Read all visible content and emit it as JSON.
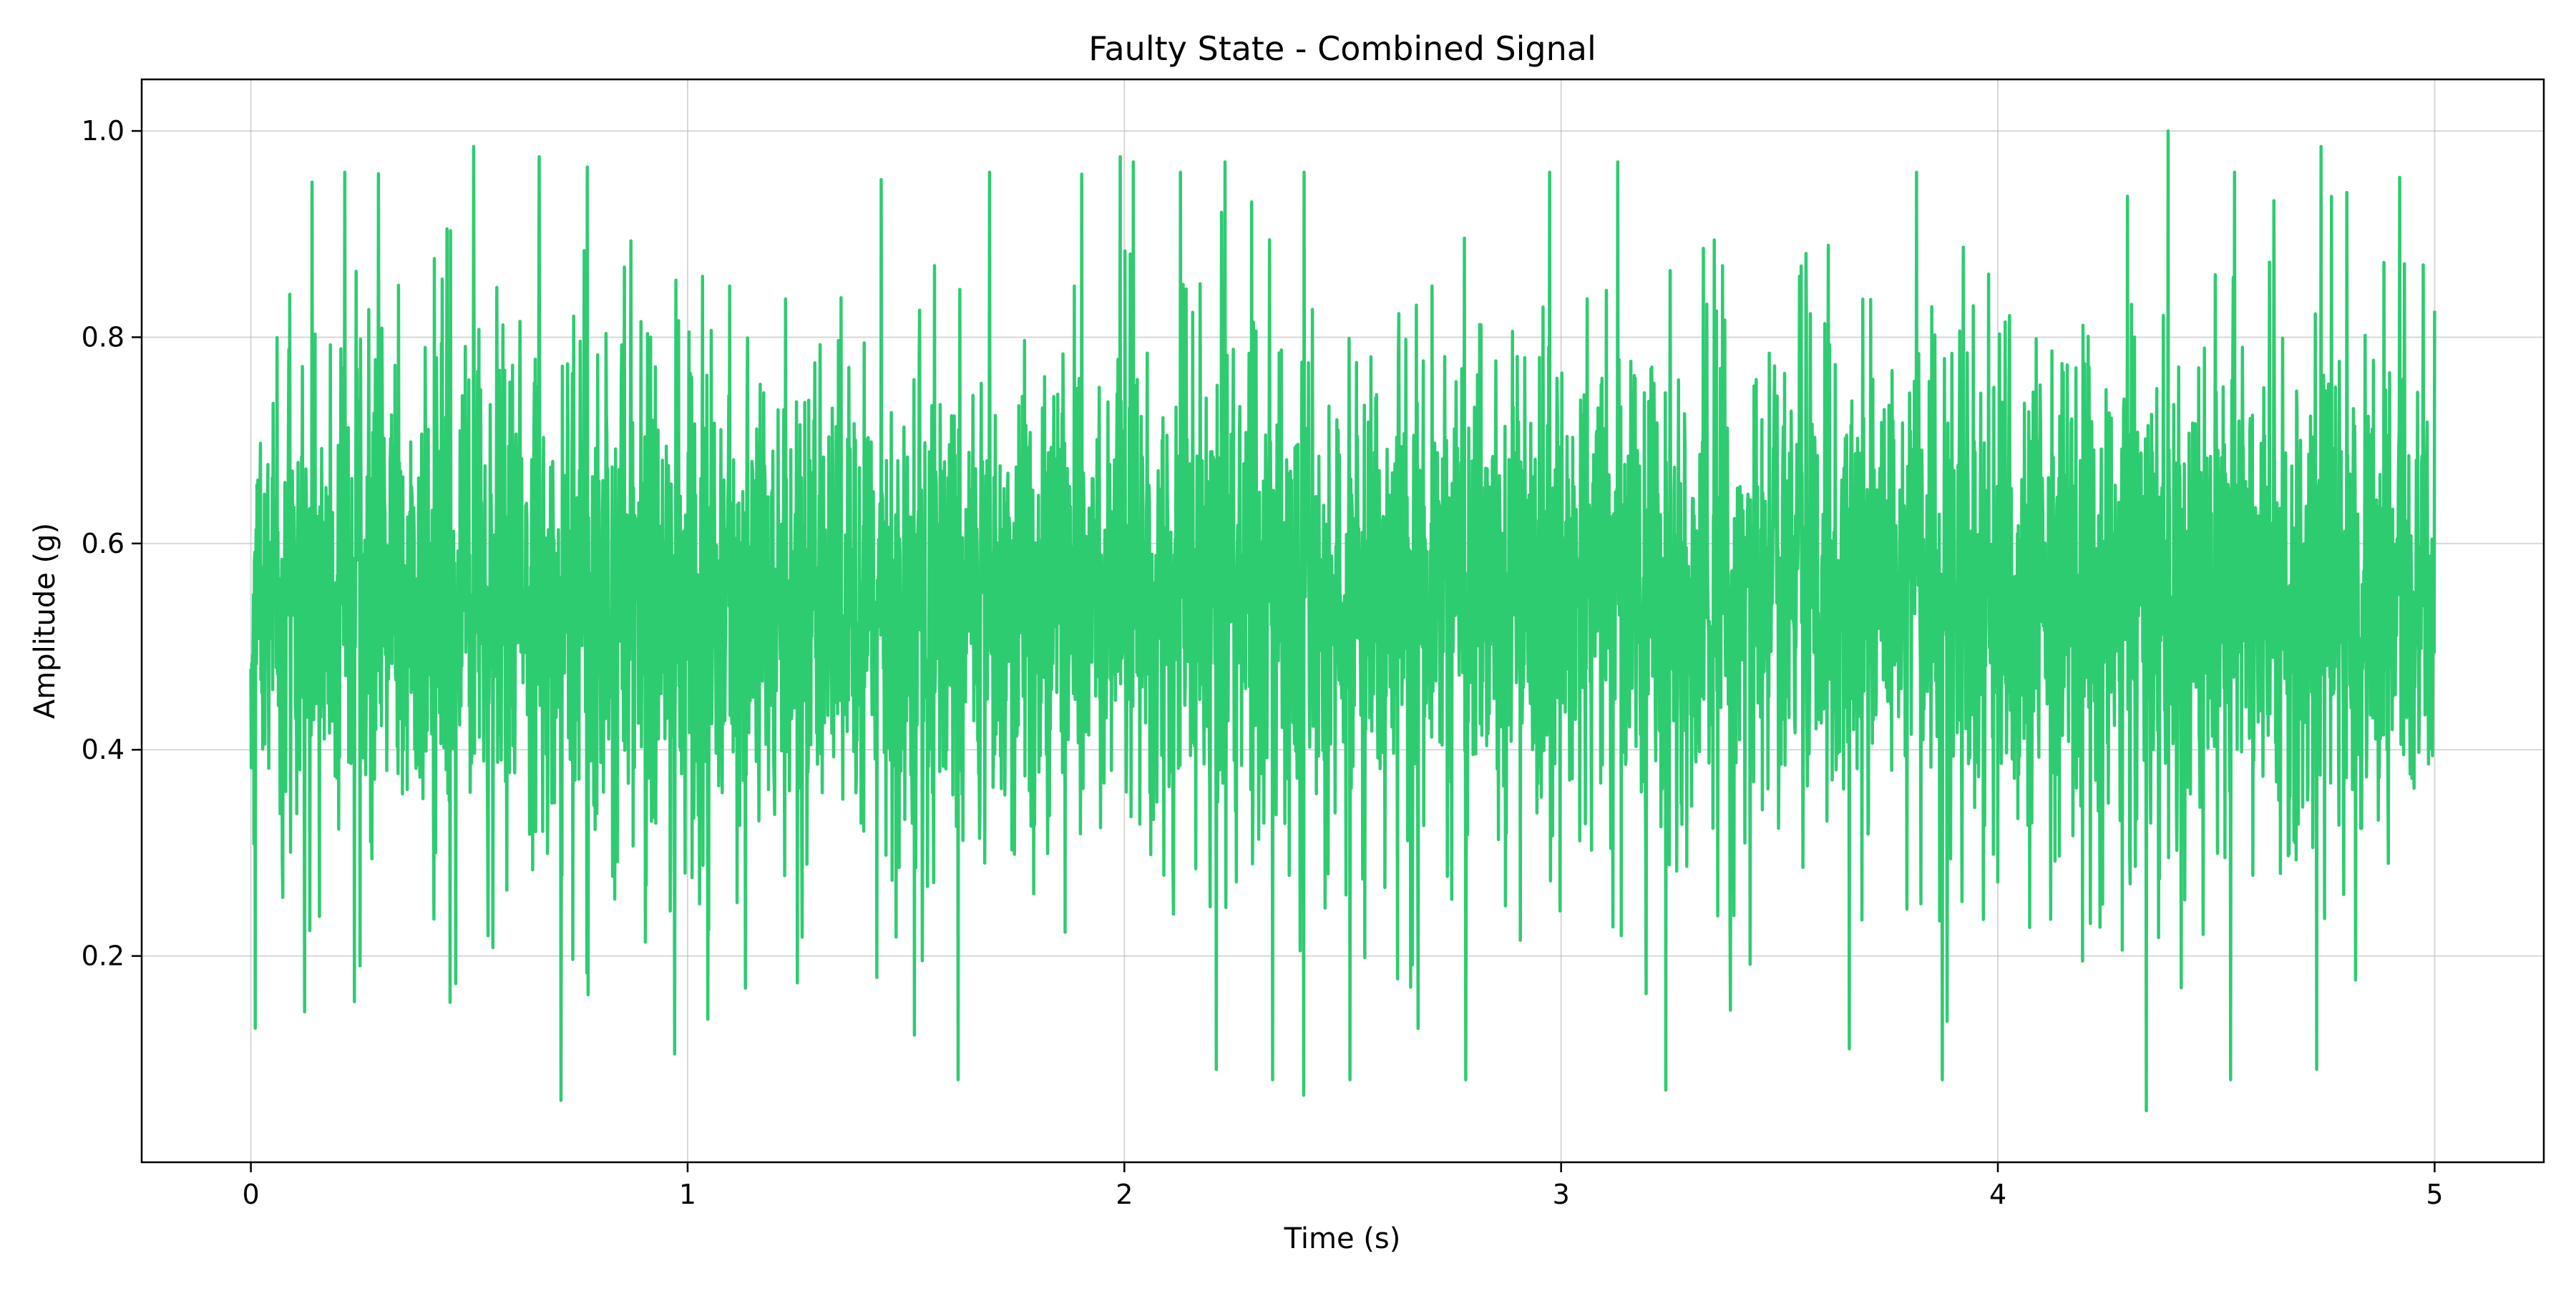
{
  "chart_data": {
    "type": "line",
    "title": "Faulty State - Combined Signal",
    "xlabel": "Time (s)",
    "ylabel": "Amplitude (g)",
    "xlim": [
      -0.25,
      5.25
    ],
    "ylim": [
      0.0,
      1.05
    ],
    "xticks": [
      0,
      1,
      2,
      3,
      4,
      5
    ],
    "xtick_labels": [
      "0",
      "1",
      "2",
      "3",
      "4",
      "5"
    ],
    "yticks": [
      0.2,
      0.4,
      0.6,
      0.8,
      1.0
    ],
    "ytick_labels": [
      "0.2",
      "0.4",
      "0.6",
      "0.8",
      "1.0"
    ],
    "grid": true,
    "legend": "none",
    "series": [
      {
        "color": "#2ecc71",
        "x_start": 0,
        "x_end": 5,
        "sample_count": 5000,
        "mean": 0.55,
        "typical_band": [
          0.35,
          0.85
        ],
        "max": 1.0,
        "min": 0.05,
        "peaks": [
          {
            "x": 0.51,
            "y": 0.985
          },
          {
            "x": 0.66,
            "y": 0.975
          },
          {
            "x": 0.77,
            "y": 0.965
          },
          {
            "x": 1.99,
            "y": 0.975
          },
          {
            "x": 2.02,
            "y": 0.97
          },
          {
            "x": 2.23,
            "y": 0.97
          },
          {
            "x": 3.13,
            "y": 0.97
          },
          {
            "x": 4.39,
            "y": 1.0
          },
          {
            "x": 4.74,
            "y": 0.985
          },
          {
            "x": 4.92,
            "y": 0.955
          }
        ],
        "troughs": [
          {
            "x": 0.01,
            "y": 0.13
          },
          {
            "x": 0.71,
            "y": 0.06
          },
          {
            "x": 0.97,
            "y": 0.105
          },
          {
            "x": 2.21,
            "y": 0.09
          },
          {
            "x": 2.41,
            "y": 0.065
          },
          {
            "x": 3.24,
            "y": 0.07
          },
          {
            "x": 3.66,
            "y": 0.11
          },
          {
            "x": 4.34,
            "y": 0.05
          },
          {
            "x": 4.73,
            "y": 0.09
          }
        ]
      }
    ]
  }
}
